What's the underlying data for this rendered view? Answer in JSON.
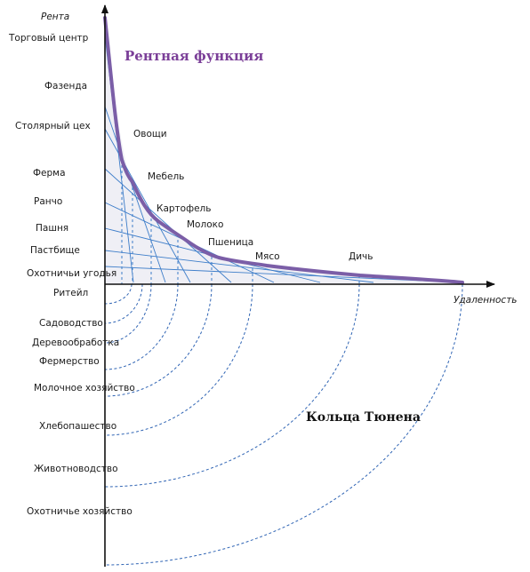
{
  "axes": {
    "y_label": "Рента",
    "x_label": "Удаленность"
  },
  "titles": {
    "rent_function": "Рентная функция",
    "thunen_rings": "Кольца Тюнена"
  },
  "rent_levels": [
    "Торговый центр",
    "Фазенда",
    "Столярный цех",
    "Ферма",
    "Ранчо",
    "Пашня",
    "Пастбище",
    "Охотничьи угодья",
    "Ритейл"
  ],
  "products": [
    "Овощи",
    "Мебель",
    "Картофель",
    "Молоко",
    "Пшеница",
    "Мясо",
    "Дичь"
  ],
  "rings": [
    "Садоводство",
    "Деревообработка",
    "Фермерство",
    "Молочное хозяйство",
    "Хлебопашество",
    "Животноводство",
    "Охотничье хозяйство"
  ],
  "colors": {
    "rent_curve": "#7b5ea7",
    "title": "#7b3f98",
    "bid_lines": "#3d7dc9",
    "rings": "#2f64b4",
    "axes": "#111111"
  }
}
